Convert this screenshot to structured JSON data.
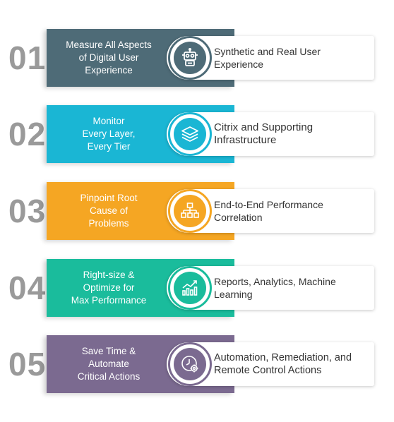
{
  "steps": [
    {
      "number": "01",
      "left_text": "Measure All Aspects\nof Digital User\nExperience",
      "right_text": "Synthetic and Real User\nExperience",
      "color": "#4e6b77",
      "icon": "robot-icon"
    },
    {
      "number": "02",
      "left_text": "Monitor\nEvery Layer,\nEvery Tier",
      "right_text": "Citrix and Supporting\nInfrastructure",
      "color": "#1ab6d4",
      "icon": "layers-icon"
    },
    {
      "number": "03",
      "left_text": "Pinpoint Root\nCause of\nProblems",
      "right_text": "End-to-End Performance\nCorrelation",
      "color": "#f5a623",
      "icon": "hierarchy-icon"
    },
    {
      "number": "04",
      "left_text": "Right-size &\nOptimize for\nMax Performance",
      "right_text": "Reports, Analytics, Machine\nLearning",
      "color": "#1abc9c",
      "icon": "growth-chart-icon"
    },
    {
      "number": "05",
      "left_text": "Save Time &\nAutomate\nCritical Actions",
      "right_text": "Automation, Remediation, and\nRemote Control Actions",
      "color": "#7b6a90",
      "icon": "clock-gear-icon"
    }
  ]
}
